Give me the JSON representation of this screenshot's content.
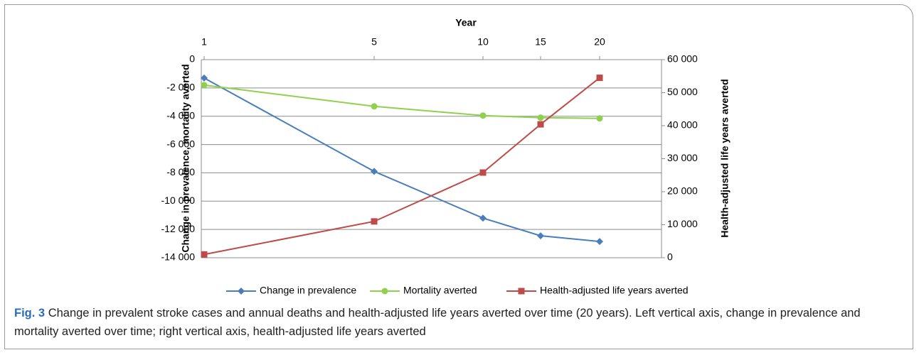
{
  "chart_data": {
    "type": "line",
    "xlabel": "Year",
    "ylabel": "Change in prevalence, mortality averted",
    "y2label": "Health-adjusted life years averted",
    "categories": [
      "1",
      "5",
      "10",
      "15",
      "20"
    ],
    "series": [
      {
        "name": "Change in prevalence",
        "color": "#4a7ebb",
        "marker": "diamond",
        "values": [
          -1300,
          -7900,
          -11200,
          -12450,
          -12850
        ]
      },
      {
        "name": "Mortality averted",
        "color": "#8fd14f",
        "marker": "circle",
        "values": [
          -1800,
          -3300,
          -3950,
          -4100,
          -4150
        ]
      },
      {
        "name": "Health-adjusted life years averted",
        "color": "#be4b48",
        "marker": "square",
        "axis": "y2",
        "values": [
          1000,
          11000,
          25800,
          40400,
          54500
        ]
      }
    ],
    "ylim": [
      -14000,
      0
    ],
    "yticks": [
      {
        "value": -14000,
        "label": "-14 000"
      },
      {
        "value": -12000,
        "label": "-12 000"
      },
      {
        "value": -10000,
        "label": "-10 000"
      },
      {
        "value": -8000,
        "label": "-8 000"
      },
      {
        "value": -6000,
        "label": "-6 000"
      },
      {
        "value": -4000,
        "label": "-4 000"
      },
      {
        "value": -2000,
        "label": "-2 000"
      },
      0
    ],
    "y2lim": [
      0,
      60000
    ],
    "y2ticks": [
      0,
      {
        "value": 10000,
        "label": "10 000"
      },
      {
        "value": 20000,
        "label": "20 000"
      },
      {
        "value": 30000,
        "label": "30 000"
      },
      {
        "value": 40000,
        "label": "40 000"
      },
      {
        "value": 50000,
        "label": "50 000"
      },
      {
        "value": 60000,
        "label": "60 000"
      }
    ],
    "grid": true,
    "legend": "bottom"
  },
  "caption": {
    "label": "Fig. 3",
    "text": "Change in prevalent stroke cases and annual deaths and health-adjusted life years averted over time (20 years). Left vertical axis, change in prevalence and mortality averted over time; right vertical axis, health-adjusted life years averted"
  }
}
